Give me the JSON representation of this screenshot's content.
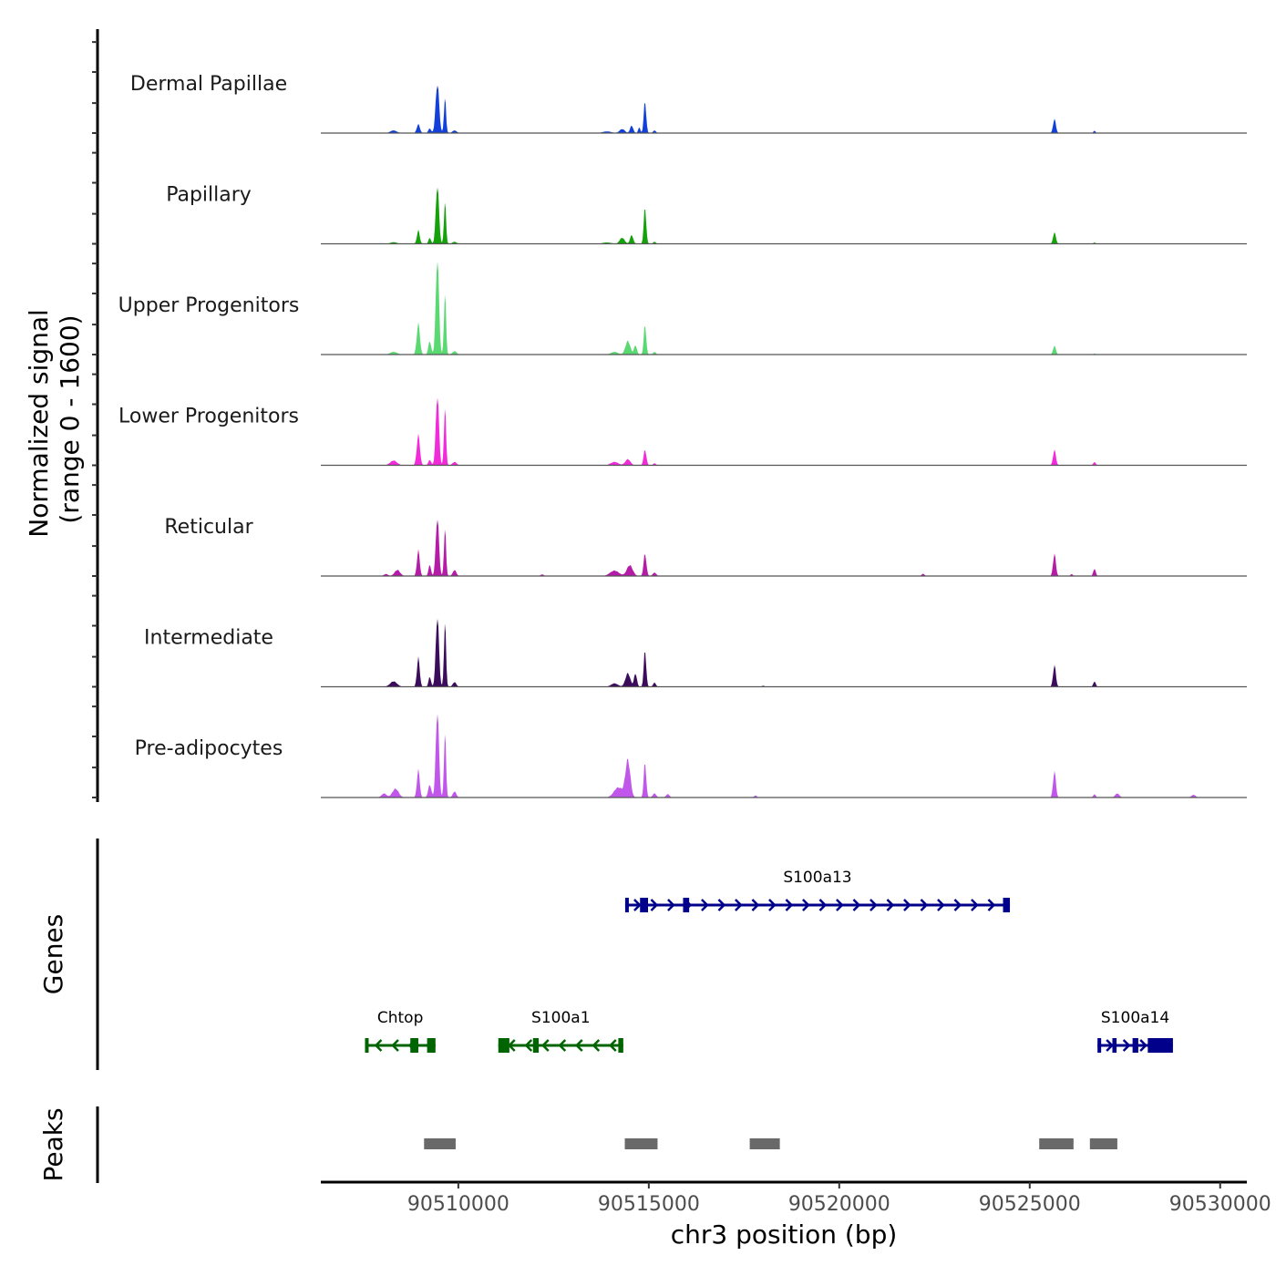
{
  "chart_data": {
    "type": "area",
    "title": "",
    "ylabel_signal": "Normalized signal\n(range 0 - 1600)",
    "ylabel_signal_lines": [
      "Normalized signal",
      "(range 0 - 1600)"
    ],
    "signal_range": [
      0,
      1600
    ],
    "xlabel": "chr3 position (bp)",
    "chromosome": "chr3",
    "xlim": [
      90506390,
      90530700
    ],
    "x_ticks": [
      90510000,
      90515000,
      90520000,
      90525000,
      90530000
    ],
    "x_tick_labels": [
      "90510000",
      "90515000",
      "90520000",
      "90525000",
      "90530000"
    ],
    "tracks": [
      {
        "name": "Dermal Papillae",
        "color": "#1240d8",
        "peaks": [
          [
            90508300,
            40,
            180
          ],
          [
            90508950,
            130,
            90
          ],
          [
            90509250,
            70,
            80
          ],
          [
            90509450,
            740,
            100
          ],
          [
            90509650,
            520,
            60
          ],
          [
            90509900,
            40,
            120
          ],
          [
            90513900,
            25,
            250
          ],
          [
            90514300,
            60,
            150
          ],
          [
            90514550,
            110,
            90
          ],
          [
            90514750,
            90,
            60
          ],
          [
            90514900,
            470,
            70
          ],
          [
            90515150,
            40,
            80
          ],
          [
            90525650,
            210,
            80
          ],
          [
            90526700,
            35,
            60
          ]
        ]
      },
      {
        "name": "Papillary",
        "color": "#14a10a",
        "peaks": [
          [
            90508300,
            25,
            180
          ],
          [
            90508950,
            200,
            80
          ],
          [
            90509250,
            90,
            70
          ],
          [
            90509450,
            880,
            90
          ],
          [
            90509650,
            620,
            60
          ],
          [
            90509900,
            30,
            120
          ],
          [
            90513900,
            20,
            250
          ],
          [
            90514300,
            90,
            140
          ],
          [
            90514550,
            130,
            90
          ],
          [
            90514900,
            540,
            70
          ],
          [
            90515150,
            30,
            80
          ],
          [
            90525650,
            170,
            80
          ],
          [
            90526700,
            20,
            60
          ]
        ]
      },
      {
        "name": "Upper Progenitors",
        "color": "#5ad871",
        "peaks": [
          [
            90508300,
            40,
            200
          ],
          [
            90508950,
            460,
            90
          ],
          [
            90509250,
            200,
            80
          ],
          [
            90509450,
            1450,
            90
          ],
          [
            90509650,
            900,
            60
          ],
          [
            90509900,
            50,
            120
          ],
          [
            90514100,
            40,
            200
          ],
          [
            90514450,
            200,
            140
          ],
          [
            90514650,
            140,
            80
          ],
          [
            90514900,
            440,
            70
          ],
          [
            90515150,
            40,
            80
          ],
          [
            90525650,
            130,
            80
          ],
          [
            90526700,
            15,
            60
          ]
        ]
      },
      {
        "name": "Lower Progenitors",
        "color": "#f12bd9",
        "peaks": [
          [
            90508300,
            70,
            200
          ],
          [
            90508950,
            450,
            90
          ],
          [
            90509250,
            80,
            80
          ],
          [
            90509450,
            1050,
            90
          ],
          [
            90509650,
            850,
            60
          ],
          [
            90509900,
            50,
            120
          ],
          [
            90514100,
            50,
            220
          ],
          [
            90514450,
            90,
            150
          ],
          [
            90514900,
            230,
            80
          ],
          [
            90515150,
            30,
            80
          ],
          [
            90525650,
            230,
            80
          ],
          [
            90526700,
            50,
            70
          ]
        ]
      },
      {
        "name": "Reticular",
        "color": "#b41ca7",
        "peaks": [
          [
            90508100,
            30,
            120
          ],
          [
            90508400,
            90,
            160
          ],
          [
            90508950,
            380,
            80
          ],
          [
            90509250,
            170,
            70
          ],
          [
            90509450,
            880,
            90
          ],
          [
            90509650,
            700,
            60
          ],
          [
            90509900,
            90,
            100
          ],
          [
            90512200,
            25,
            90
          ],
          [
            90514100,
            80,
            260
          ],
          [
            90514500,
            160,
            170
          ],
          [
            90514900,
            330,
            80
          ],
          [
            90515150,
            50,
            100
          ],
          [
            90522200,
            35,
            80
          ],
          [
            90525650,
            330,
            80
          ],
          [
            90526100,
            30,
            60
          ],
          [
            90526700,
            110,
            70
          ]
        ]
      },
      {
        "name": "Intermediate",
        "color": "#3c0c5c",
        "peaks": [
          [
            90508300,
            80,
            200
          ],
          [
            90508950,
            430,
            80
          ],
          [
            90509250,
            150,
            70
          ],
          [
            90509450,
            1060,
            90
          ],
          [
            90509650,
            950,
            60
          ],
          [
            90509900,
            70,
            100
          ],
          [
            90514100,
            50,
            200
          ],
          [
            90514450,
            200,
            140
          ],
          [
            90514650,
            200,
            80
          ],
          [
            90514900,
            540,
            70
          ],
          [
            90515150,
            60,
            80
          ],
          [
            90518000,
            15,
            80
          ],
          [
            90525650,
            320,
            80
          ],
          [
            90526700,
            80,
            70
          ]
        ]
      },
      {
        "name": "Pre-adipocytes",
        "color": "#c057ea",
        "peaks": [
          [
            90508050,
            60,
            140
          ],
          [
            90508350,
            130,
            180
          ],
          [
            90508950,
            410,
            80
          ],
          [
            90509250,
            190,
            90
          ],
          [
            90509450,
            1300,
            90
          ],
          [
            90509650,
            950,
            60
          ],
          [
            90509900,
            90,
            100
          ],
          [
            90514200,
            150,
            250
          ],
          [
            90514450,
            550,
            140
          ],
          [
            90514900,
            520,
            70
          ],
          [
            90515150,
            60,
            100
          ],
          [
            90515500,
            50,
            100
          ],
          [
            90517800,
            30,
            80
          ],
          [
            90525650,
            390,
            80
          ],
          [
            90526700,
            50,
            70
          ],
          [
            90527300,
            60,
            120
          ],
          [
            90529300,
            40,
            120
          ]
        ]
      }
    ],
    "genes": [
      {
        "name": "S100a13",
        "strand": "+",
        "color": "#00008b",
        "row": 0,
        "start": 90514380,
        "end": 90524480,
        "exons": [
          [
            90514380,
            90514420
          ],
          [
            90514770,
            90514980
          ],
          [
            90515900,
            90516060
          ],
          [
            90524300,
            90524480
          ]
        ]
      },
      {
        "name": "Chtop",
        "strand": "-",
        "color": "#006400",
        "row": 1,
        "start": 90507550,
        "end": 90509400,
        "exons": [
          [
            90507550,
            90507620
          ],
          [
            90508740,
            90508950
          ],
          [
            90509180,
            90509400
          ]
        ]
      },
      {
        "name": "S100a1",
        "strand": "-",
        "color": "#006400",
        "row": 1,
        "start": 90511050,
        "end": 90514330,
        "exons": [
          [
            90511050,
            90511340
          ],
          [
            90511960,
            90512110
          ],
          [
            90514200,
            90514330
          ]
        ]
      },
      {
        "name": "S100a14",
        "strand": "+",
        "color": "#00008b",
        "row": 1,
        "start": 90526780,
        "end": 90528760,
        "exons": [
          [
            90526780,
            90526830
          ],
          [
            90527170,
            90527280
          ],
          [
            90527700,
            90527850
          ],
          [
            90528100,
            90528760
          ]
        ]
      }
    ],
    "peaks_track": {
      "color": "#696969",
      "regions": [
        [
          90509100,
          90509930
        ],
        [
          90514370,
          90515230
        ],
        [
          90517650,
          90518440
        ],
        [
          90525250,
          90526150
        ],
        [
          90526580,
          90527300
        ]
      ]
    },
    "panel_labels": {
      "genes": "Genes",
      "peaks": "Peaks"
    }
  }
}
